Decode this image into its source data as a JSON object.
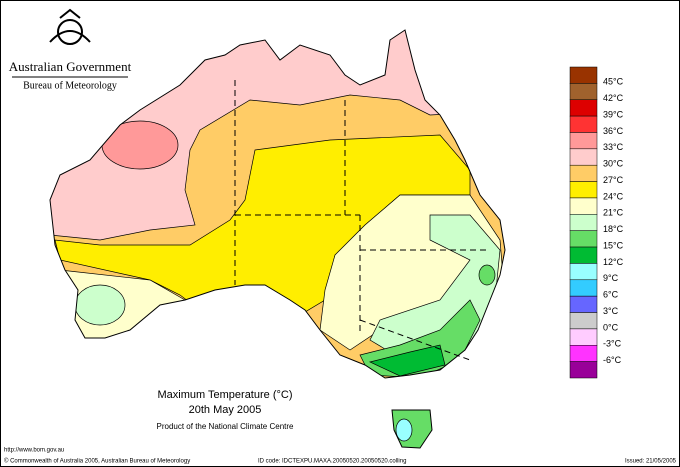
{
  "header": {
    "agency": "Australian Government",
    "bureau": "Bureau of Meteorology"
  },
  "title": {
    "line1": "Maximum Temperature (°C)",
    "line2": "20th May 2005",
    "credit": "Product of the National Climate Centre"
  },
  "url": "http://www.bom.gov.au",
  "footer": {
    "copyright": "© Commonwealth of Australia 2005, Australian Bureau of Meteorology",
    "id_code": "ID code: IDCTEXPU.MAXA.20050520.20050520.colling",
    "issued": "Issued: 21/05/2005"
  },
  "legend": {
    "labels": [
      "45°C",
      "42°C",
      "39°C",
      "36°C",
      "33°C",
      "30°C",
      "27°C",
      "24°C",
      "21°C",
      "18°C",
      "15°C",
      "12°C",
      "9°C",
      "6°C",
      "3°C",
      "0°C",
      "-3°C",
      "-6°C"
    ],
    "colors": [
      "#993300",
      "#a0622d",
      "#dd0000",
      "#ff3333",
      "#ff9999",
      "#ffcccc",
      "#ffcc66",
      "#ffee00",
      "#ffffcc",
      "#ccffcc",
      "#66dd66",
      "#00bb33",
      "#99ffff",
      "#33ccff",
      "#6666ff",
      "#cccccc",
      "#ffccff",
      "#ff33ff",
      "#990099"
    ]
  }
}
